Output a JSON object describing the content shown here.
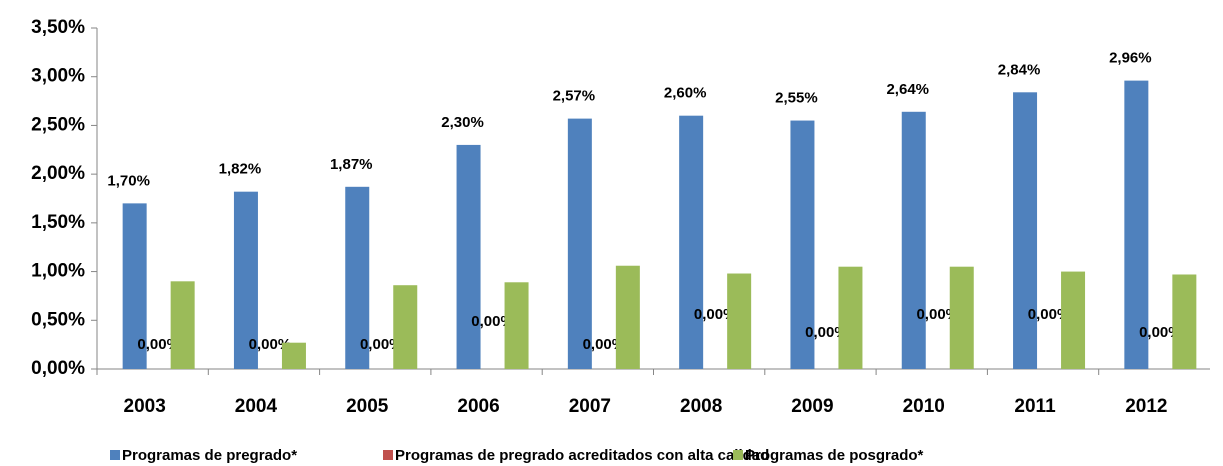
{
  "chart_data": {
    "type": "bar",
    "categories": [
      "2003",
      "2004",
      "2005",
      "2006",
      "2007",
      "2008",
      "2009",
      "2010",
      "2011",
      "2012"
    ],
    "series": [
      {
        "name": "Programas de pregrado*",
        "color": "#4f81bd",
        "values": [
          1.7,
          1.82,
          1.87,
          2.3,
          2.57,
          2.6,
          2.55,
          2.64,
          2.84,
          2.96
        ],
        "value_labels": [
          "1,70%",
          "1,82%",
          "1,87%",
          "2,30%",
          "2,57%",
          "2,60%",
          "2,55%",
          "2,64%",
          "2,84%",
          "2,96%"
        ]
      },
      {
        "name": "Programas de pregrado acreditados con alta calidad",
        "color": "#c0504d",
        "values": [
          0,
          0,
          0,
          0,
          0,
          0,
          0,
          0,
          0,
          0
        ],
        "value_labels": [
          "0,00%",
          "0,00%",
          "0,00%",
          "0,00%",
          "0,00%",
          "0,00%",
          "0,00%",
          "0,00%",
          "0,00%",
          "0,00%"
        ]
      },
      {
        "name": "Programas de posgrado*",
        "color": "#9bbb59",
        "values": [
          0.9,
          0.27,
          0.86,
          0.89,
          1.06,
          0.98,
          1.05,
          1.05,
          1.0,
          0.97
        ]
      }
    ],
    "ylim": [
      0,
      3.5
    ],
    "yticks": [
      {
        "value": 0,
        "label": "0,00%"
      },
      {
        "value": 0.5,
        "label": "0,50%"
      },
      {
        "value": 1,
        "label": "1,00%"
      },
      {
        "value": 1.5,
        "label": "1,50%"
      },
      {
        "value": 2,
        "label": "2,00%"
      },
      {
        "value": 2.5,
        "label": "2,50%"
      },
      {
        "value": 3,
        "label": "3,00%"
      },
      {
        "value": 3.5,
        "label": "3,50%"
      }
    ],
    "legend": "bottom"
  }
}
